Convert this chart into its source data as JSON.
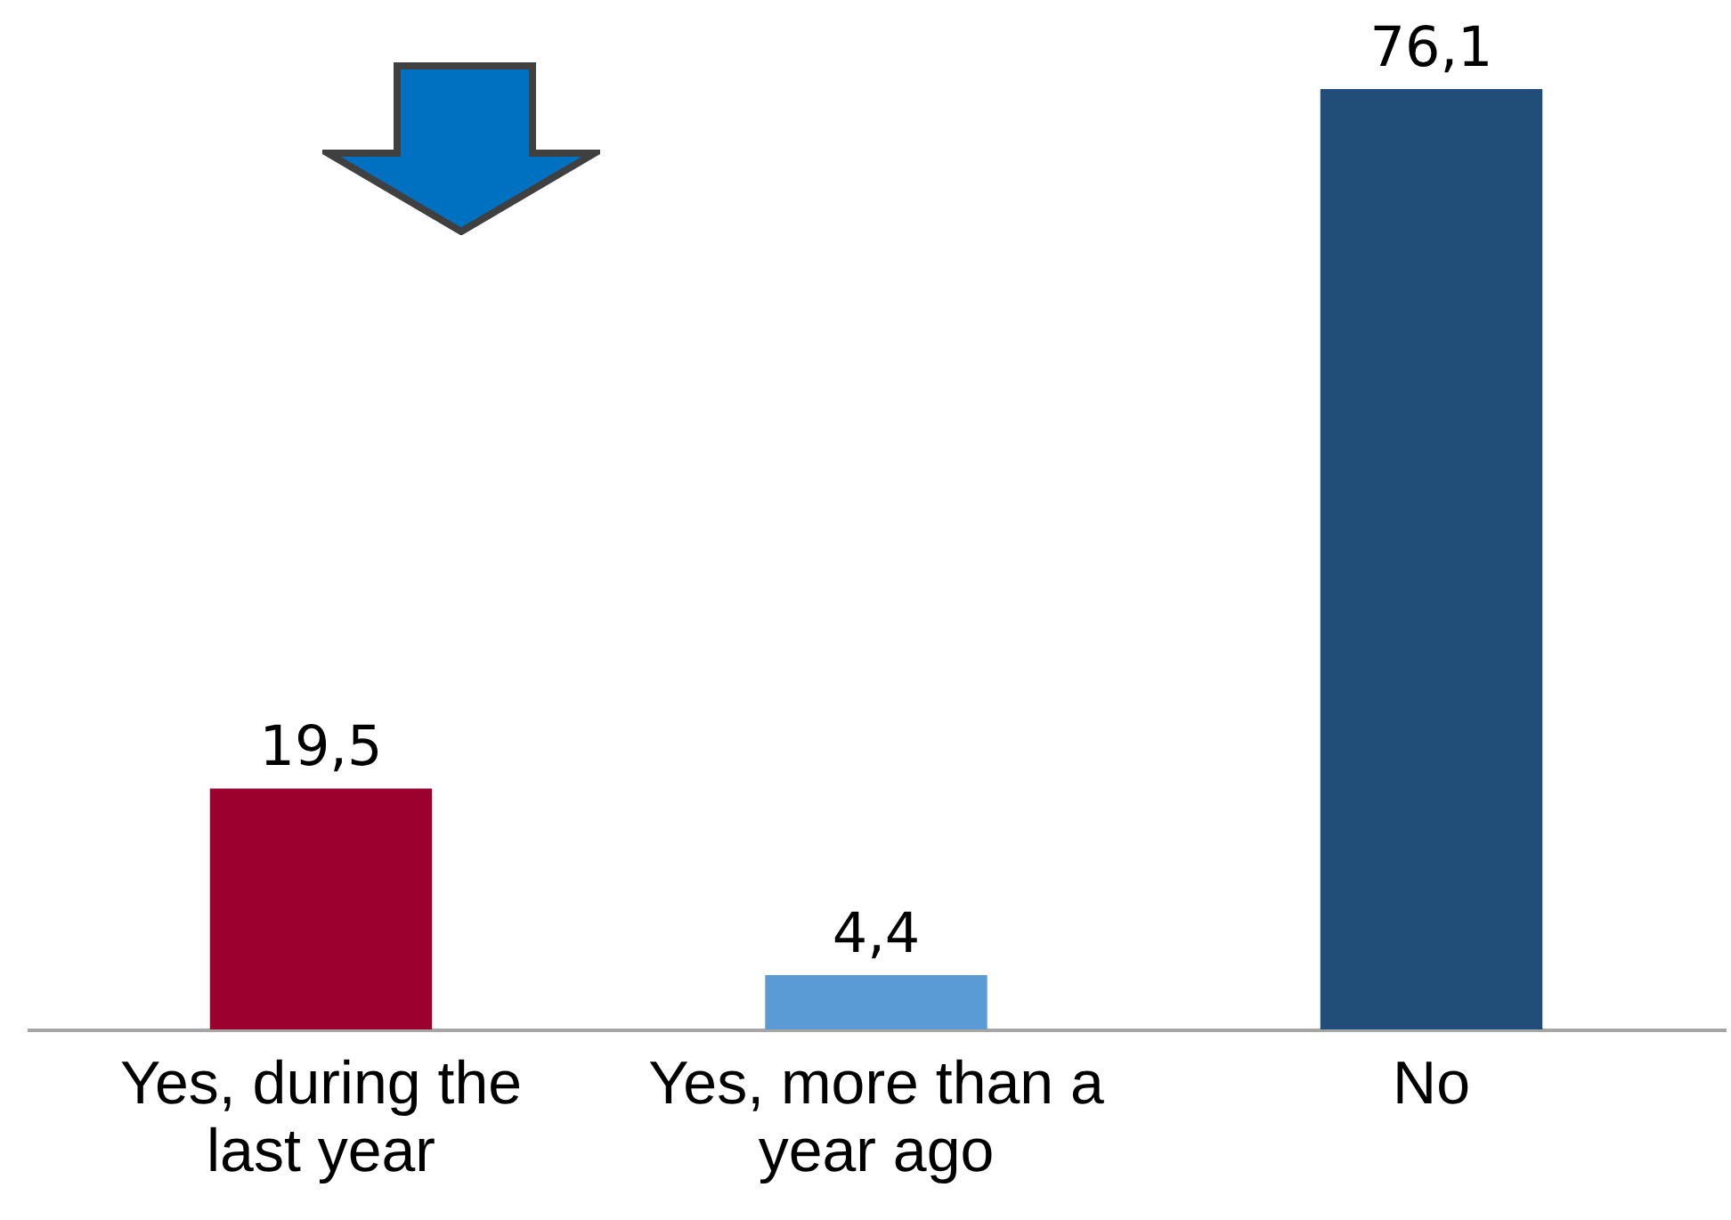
{
  "chart_data": {
    "type": "bar",
    "categories": [
      "Yes, during the last year",
      "Yes, more than a year ago",
      "No"
    ],
    "values": [
      19.5,
      4.4,
      76.1
    ],
    "colors": [
      "#9b002f",
      "#5b9bd5",
      "#214e78"
    ],
    "value_labels": [
      "19,5",
      "4,4",
      "76,1"
    ],
    "legend": false
  }
}
